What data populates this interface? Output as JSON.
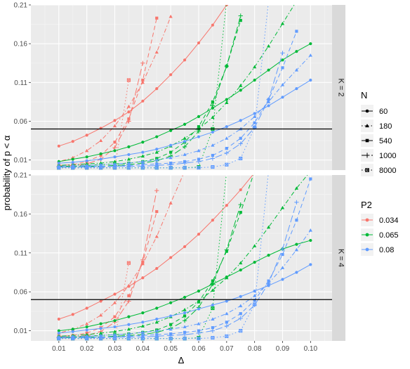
{
  "chart_data": {
    "type": "line",
    "xlabel": "Δ",
    "ylabel": "probability of p < α",
    "x_ticks": [
      "0.01",
      "0.02",
      "0.03",
      "0.04",
      "0.05",
      "0.06",
      "0.07",
      "0.08",
      "0.09",
      "0.10"
    ],
    "y_ticks": [
      "0.01",
      "0.06",
      "0.11",
      "0.16",
      "0.21"
    ],
    "xlim": [
      0.0,
      0.1077
    ],
    "ylim": [
      -0.003,
      0.21
    ],
    "alpha_line": 0.05,
    "legend_N": {
      "title": "N",
      "entries": [
        {
          "label": "60",
          "linetype": "solid",
          "shape": "circle"
        },
        {
          "label": "180",
          "linetype": "dotdash",
          "shape": "triangle"
        },
        {
          "label": "540",
          "linetype": "dashed",
          "shape": "square"
        },
        {
          "label": "1000",
          "linetype": "longdash",
          "shape": "plus"
        },
        {
          "label": "8000",
          "linetype": "dotted",
          "shape": "boxx"
        }
      ]
    },
    "legend_P2": {
      "title": "P2",
      "entries": [
        {
          "label": "0.034",
          "color": "#F8766D"
        },
        {
          "label": "0.065",
          "color": "#00BA38"
        },
        {
          "label": "0.08",
          "color": "#619CFF"
        }
      ]
    },
    "x": [
      0.01,
      0.015,
      0.02,
      0.025,
      0.03,
      0.035,
      0.04,
      0.045,
      0.05,
      0.055,
      0.06,
      0.065,
      0.07,
      0.075,
      0.08,
      0.085,
      0.09,
      0.095,
      0.1
    ],
    "panels": [
      {
        "strip": "K = 2",
        "series": [
          {
            "P2": "0.034",
            "N": "60",
            "values": [
              0.028,
              0.034,
              0.042,
              0.051,
              0.061,
              0.072,
              0.086,
              0.102,
              0.12,
              0.139,
              0.161,
              0.184,
              0.21,
              null,
              null,
              null,
              null,
              null,
              null
            ]
          },
          {
            "P2": "0.034",
            "N": "180",
            "values": [
              0.008,
              0.013,
              0.022,
              0.035,
              0.054,
              0.079,
              0.11,
              0.149,
              0.195,
              null,
              null,
              null,
              null,
              null,
              null,
              null,
              null,
              null,
              null
            ]
          },
          {
            "P2": "0.034",
            "N": "540",
            "values": [
              0.003,
              0.004,
              0.008,
              0.016,
              0.033,
              0.063,
              0.113,
              0.193,
              null,
              null,
              null,
              null,
              null,
              null,
              null,
              null,
              null,
              null,
              null
            ]
          },
          {
            "P2": "0.034",
            "N": "1000",
            "values": [
              0.002,
              0.003,
              0.005,
              0.011,
              0.026,
              0.06,
              0.135,
              null,
              null,
              null,
              null,
              null,
              null,
              null,
              null,
              null,
              null,
              null,
              null
            ]
          },
          {
            "P2": "0.034",
            "N": "8000",
            "values": [
              0.0,
              0.0,
              0.0,
              0.0,
              0.0,
              0.113,
              null,
              null,
              null,
              null,
              null,
              null,
              null,
              null,
              null,
              null,
              null,
              null,
              null
            ]
          },
          {
            "P2": "0.065",
            "N": "60",
            "values": [
              0.008,
              0.011,
              0.014,
              0.018,
              0.022,
              0.027,
              0.033,
              0.04,
              0.048,
              0.056,
              0.066,
              0.077,
              0.088,
              0.1,
              0.113,
              0.126,
              0.139,
              0.15,
              0.16
            ]
          },
          {
            "P2": "0.065",
            "N": "180",
            "values": [
              0.003,
              0.004,
              0.005,
              0.006,
              0.008,
              0.011,
              0.015,
              0.02,
              0.028,
              0.038,
              0.05,
              0.065,
              0.084,
              0.106,
              0.13,
              0.157,
              0.186,
              0.215,
              null
            ]
          },
          {
            "P2": "0.065",
            "N": "540",
            "values": [
              0.002,
              0.002,
              0.003,
              0.004,
              0.005,
              0.006,
              0.008,
              0.012,
              0.02,
              0.033,
              0.053,
              0.085,
              0.131,
              0.19,
              null,
              null,
              null,
              null,
              null
            ]
          },
          {
            "P2": "0.065",
            "N": "1000",
            "values": [
              0.001,
              0.001,
              0.002,
              0.002,
              0.003,
              0.004,
              0.006,
              0.009,
              0.015,
              0.027,
              0.047,
              0.08,
              0.131,
              0.196,
              null,
              null,
              null,
              null,
              null
            ]
          },
          {
            "P2": "0.065",
            "N": "8000",
            "values": [
              0.0,
              0.0,
              0.0,
              0.0,
              0.0,
              0.0,
              0.0,
              0.0,
              0.0,
              0.0,
              0.001,
              0.05,
              0.215,
              null,
              null,
              null,
              null,
              null,
              null
            ]
          },
          {
            "P2": "0.08",
            "N": "60",
            "values": [
              0.006,
              0.007,
              0.009,
              0.011,
              0.014,
              0.017,
              0.02,
              0.024,
              0.029,
              0.034,
              0.04,
              0.046,
              0.053,
              0.061,
              0.07,
              0.08,
              0.091,
              0.102,
              0.113
            ]
          },
          {
            "P2": "0.08",
            "N": "180",
            "values": [
              0.002,
              0.003,
              0.003,
              0.004,
              0.005,
              0.006,
              0.008,
              0.01,
              0.013,
              0.017,
              0.022,
              0.029,
              0.038,
              0.05,
              0.066,
              0.085,
              0.107,
              0.126,
              0.145
            ]
          },
          {
            "P2": "0.08",
            "N": "540",
            "values": [
              0.001,
              0.001,
              0.002,
              0.002,
              0.002,
              0.003,
              0.004,
              0.005,
              0.006,
              0.008,
              0.011,
              0.016,
              0.025,
              0.038,
              0.058,
              0.088,
              0.129,
              0.176,
              null
            ]
          },
          {
            "P2": "0.08",
            "N": "1000",
            "values": [
              0.001,
              0.001,
              0.001,
              0.001,
              0.002,
              0.002,
              0.002,
              0.003,
              0.004,
              0.006,
              0.008,
              0.012,
              0.019,
              0.031,
              0.052,
              0.088,
              0.148,
              null,
              null
            ]
          },
          {
            "P2": "0.08",
            "N": "8000",
            "values": [
              0.0,
              0.0,
              0.0,
              0.0,
              0.0,
              0.0,
              0.0,
              0.0,
              0.0,
              0.0,
              0.0,
              0.001,
              0.004,
              0.012,
              0.052,
              0.215,
              null,
              null,
              null
            ]
          }
        ]
      },
      {
        "strip": "K = 4",
        "series": [
          {
            "P2": "0.034",
            "N": "60",
            "values": [
              0.025,
              0.031,
              0.039,
              0.048,
              0.057,
              0.067,
              0.078,
              0.09,
              0.104,
              0.118,
              0.134,
              0.152,
              0.171,
              0.191,
              0.213,
              null,
              null,
              null,
              null
            ]
          },
          {
            "P2": "0.034",
            "N": "180",
            "values": [
              0.007,
              0.012,
              0.019,
              0.03,
              0.046,
              0.068,
              0.096,
              0.131,
              0.174,
              0.215,
              null,
              null,
              null,
              null,
              null,
              null,
              null,
              null,
              null
            ]
          },
          {
            "P2": "0.034",
            "N": "540",
            "values": [
              0.003,
              0.004,
              0.007,
              0.014,
              0.028,
              0.055,
              0.098,
              0.163,
              null,
              null,
              null,
              null,
              null,
              null,
              null,
              null,
              null,
              null,
              null
            ]
          },
          {
            "P2": "0.034",
            "N": "1000",
            "values": [
              0.002,
              0.002,
              0.004,
              0.009,
              0.021,
              0.048,
              0.101,
              0.19,
              null,
              null,
              null,
              null,
              null,
              null,
              null,
              null,
              null,
              null,
              null
            ]
          },
          {
            "P2": "0.034",
            "N": "8000",
            "values": [
              0.0,
              0.0,
              0.0,
              0.0,
              0.0,
              0.097,
              null,
              null,
              null,
              null,
              null,
              null,
              null,
              null,
              null,
              null,
              null,
              null,
              null
            ]
          },
          {
            "P2": "0.065",
            "N": "60",
            "values": [
              0.01,
              0.012,
              0.015,
              0.019,
              0.023,
              0.028,
              0.033,
              0.039,
              0.046,
              0.053,
              0.061,
              0.07,
              0.079,
              0.088,
              0.098,
              0.107,
              0.115,
              0.121,
              0.126
            ]
          },
          {
            "P2": "0.065",
            "N": "180",
            "values": [
              0.003,
              0.004,
              0.005,
              0.007,
              0.009,
              0.012,
              0.016,
              0.021,
              0.028,
              0.037,
              0.048,
              0.062,
              0.078,
              0.097,
              0.119,
              0.143,
              0.168,
              0.193,
              0.215
            ]
          },
          {
            "P2": "0.065",
            "N": "540",
            "values": [
              0.002,
              0.002,
              0.003,
              0.004,
              0.005,
              0.006,
              0.008,
              0.011,
              0.018,
              0.029,
              0.047,
              0.074,
              0.112,
              0.162,
              0.215,
              null,
              null,
              null,
              null
            ]
          },
          {
            "P2": "0.065",
            "N": "1000",
            "values": [
              0.001,
              0.001,
              0.002,
              0.002,
              0.003,
              0.004,
              0.005,
              0.008,
              0.013,
              0.023,
              0.04,
              0.07,
              0.114,
              0.172,
              null,
              null,
              null,
              null,
              null
            ]
          },
          {
            "P2": "0.065",
            "N": "8000",
            "values": [
              0.0,
              0.0,
              0.0,
              0.0,
              0.0,
              0.0,
              0.0,
              0.0,
              0.0,
              0.0,
              0.001,
              0.039,
              0.215,
              null,
              null,
              null,
              null,
              null,
              null
            ]
          },
          {
            "P2": "0.08",
            "N": "60",
            "values": [
              0.007,
              0.009,
              0.011,
              0.013,
              0.015,
              0.018,
              0.021,
              0.025,
              0.029,
              0.033,
              0.038,
              0.043,
              0.048,
              0.054,
              0.061,
              0.068,
              0.076,
              0.085,
              0.095
            ]
          },
          {
            "P2": "0.08",
            "N": "180",
            "values": [
              0.002,
              0.003,
              0.003,
              0.004,
              0.005,
              0.006,
              0.008,
              0.01,
              0.012,
              0.015,
              0.019,
              0.025,
              0.032,
              0.042,
              0.055,
              0.071,
              0.091,
              0.114,
              0.139
            ]
          },
          {
            "P2": "0.08",
            "N": "540",
            "values": [
              0.001,
              0.001,
              0.002,
              0.002,
              0.002,
              0.003,
              0.004,
              0.005,
              0.006,
              0.008,
              0.01,
              0.014,
              0.021,
              0.032,
              0.049,
              0.074,
              0.108,
              0.152,
              0.205
            ]
          },
          {
            "P2": "0.08",
            "N": "1000",
            "values": [
              0.001,
              0.001,
              0.001,
              0.001,
              0.002,
              0.002,
              0.002,
              0.003,
              0.004,
              0.005,
              0.007,
              0.01,
              0.016,
              0.026,
              0.043,
              0.071,
              0.115,
              0.175,
              null
            ]
          },
          {
            "P2": "0.08",
            "N": "8000",
            "values": [
              0.0,
              0.0,
              0.0,
              0.0,
              0.0,
              0.0,
              0.0,
              0.0,
              0.0,
              0.0,
              0.0,
              0.001,
              0.003,
              0.01,
              0.044,
              0.215,
              null,
              null,
              null
            ]
          }
        ]
      }
    ]
  }
}
